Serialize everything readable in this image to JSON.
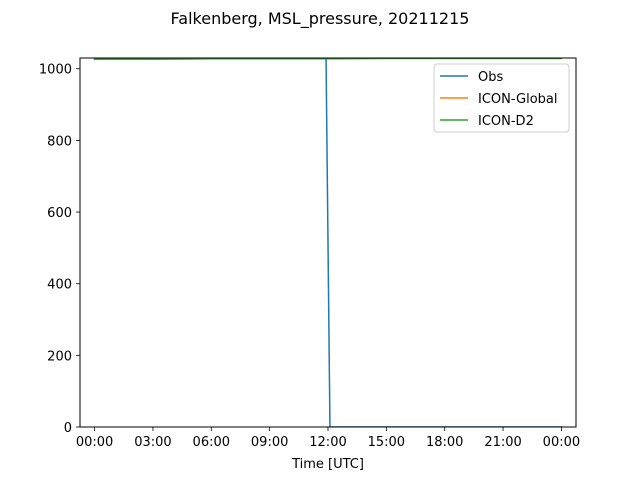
{
  "chart_data": {
    "type": "line",
    "title": "Falkenberg, MSL_pressure, 20211215",
    "xlabel": "Time [UTC]",
    "ylabel": "",
    "x_unit": "hours",
    "xlim": [
      -0.75,
      24.75
    ],
    "ylim": [
      0,
      1030
    ],
    "x_ticks": [
      0,
      3,
      6,
      9,
      12,
      15,
      18,
      21,
      24
    ],
    "x_tick_labels": [
      "00:00",
      "03:00",
      "06:00",
      "09:00",
      "12:00",
      "15:00",
      "18:00",
      "21:00",
      "00:00"
    ],
    "y_ticks": [
      0,
      200,
      400,
      600,
      800,
      1000
    ],
    "y_tick_labels": [
      "0",
      "200",
      "400",
      "600",
      "800",
      "1000"
    ],
    "legend": "top-right",
    "grid": false,
    "series": [
      {
        "name": "Obs",
        "color": "#1f77b4",
        "x": [
          0,
          3,
          6,
          9,
          11.9,
          12.1,
          15,
          18,
          21,
          24
        ],
        "y": [
          1028,
          1028,
          1028,
          1028,
          1028,
          0,
          0,
          0,
          0,
          0
        ]
      },
      {
        "name": "ICON-Global",
        "color": "#ff7f0e",
        "x": [
          0,
          3,
          6,
          9,
          12,
          15,
          18,
          21,
          24
        ],
        "y": [
          1027,
          1027,
          1028,
          1028,
          1028,
          1029,
          1029,
          1029,
          1029
        ]
      },
      {
        "name": "ICON-D2",
        "color": "#2ca02c",
        "x": [
          0,
          3,
          6,
          9,
          12,
          15,
          18,
          21,
          24
        ],
        "y": [
          1027,
          1027,
          1028,
          1028,
          1028,
          1029,
          1029,
          1029,
          1029
        ]
      }
    ]
  }
}
